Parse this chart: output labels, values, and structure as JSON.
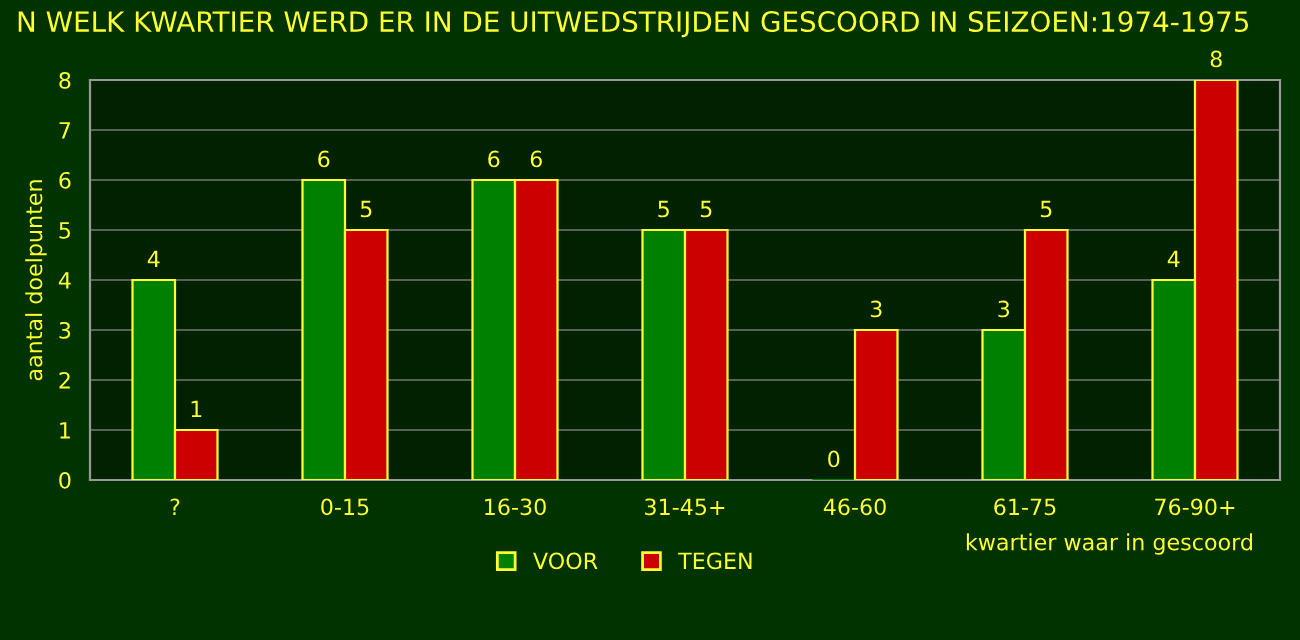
{
  "chart_data": {
    "type": "bar",
    "title": "N WELK KWARTIER WERD ER IN DE UITWEDSTRIJDEN GESCOORD IN SEIZOEN:1974-1975",
    "xlabel": "kwartier waar in gescoord",
    "ylabel": "aantal doelpunten",
    "categories": [
      "?",
      "0-15",
      "16-30",
      "31-45+",
      "46-60",
      "61-75",
      "76-90+"
    ],
    "series": [
      {
        "name": "VOOR",
        "color": "#008000",
        "values": [
          4,
          6,
          6,
          5,
          0,
          3,
          4
        ]
      },
      {
        "name": "TEGEN",
        "color": "#cc0000",
        "values": [
          1,
          5,
          6,
          5,
          3,
          5,
          8
        ]
      }
    ],
    "ylim": [
      0,
      8
    ],
    "yticks": [
      0,
      1,
      2,
      3,
      4,
      5,
      6,
      7,
      8
    ],
    "grid": "y",
    "legend": "bottom",
    "data_labels": true
  }
}
